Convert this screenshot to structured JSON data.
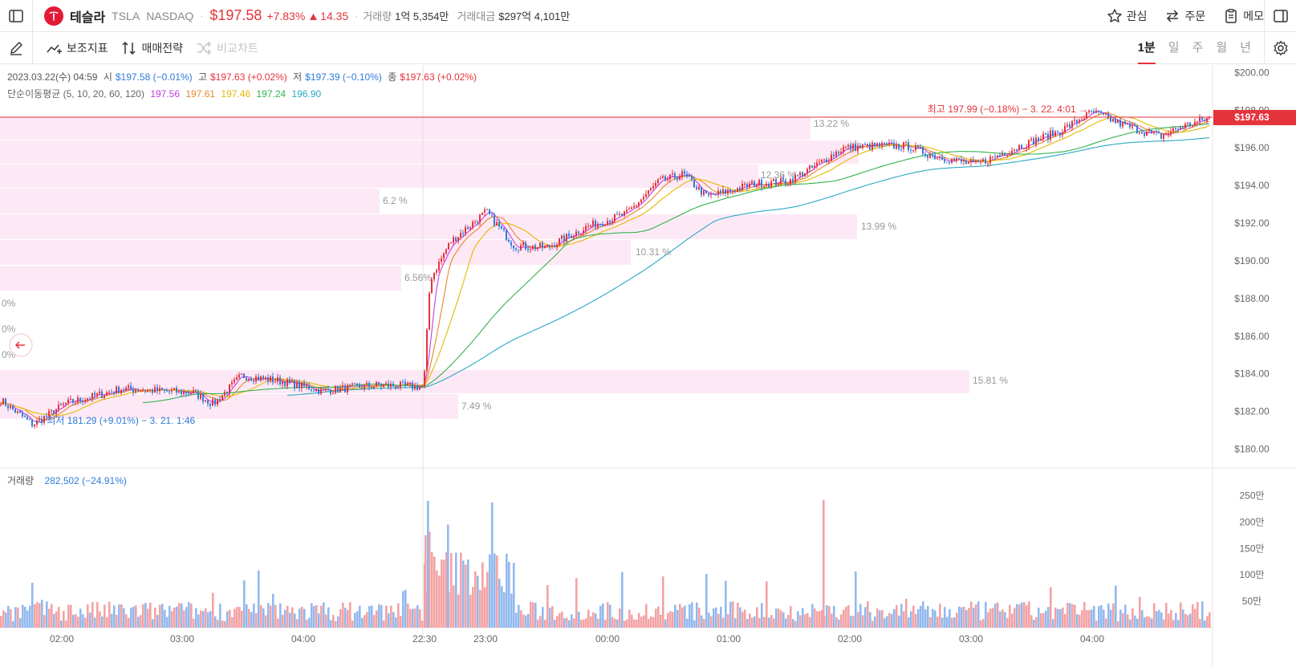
{
  "header": {
    "name": "테슬라",
    "ticker": "TSLA",
    "exchange": "NASDAQ",
    "price": "$197.58",
    "change_pct": "+7.83%",
    "change_abs": "14.35",
    "volume_label": "거래량",
    "volume_value": "1억 5,354만",
    "amount_label": "거래대금",
    "amount_value": "$297억 4,101만",
    "actions": {
      "watch": "관심",
      "order": "주문",
      "memo": "메모"
    }
  },
  "toolbar": {
    "indicators": "보조지표",
    "strategy": "매매전략",
    "compare": "비교차트",
    "periods": [
      "1분",
      "일",
      "주",
      "월",
      "년"
    ],
    "active_period": "1분"
  },
  "ohlc": {
    "datetime": "2023.03.22(수) 04:59",
    "open_label": "시",
    "open": "$197.58 (−0.01%)",
    "high_label": "고",
    "high": "$197.63 (+0.02%)",
    "low_label": "저",
    "low": "$197.39 (−0.10%)",
    "close_label": "종",
    "close": "$197.63 (+0.02%)"
  },
  "ma": {
    "label": "단순이동평균 (5, 10, 20, 60, 120)",
    "values": [
      "197.56",
      "197.61",
      "197.46",
      "197.24",
      "196.90"
    ],
    "colors": [
      "#c43de0",
      "#e8862b",
      "#e6b800",
      "#33b34d",
      "#2aa8c4"
    ]
  },
  "annotations": {
    "high": "최고 197.99 (−0.18%) − 3. 22. 4:01",
    "low": "최저 181.29 (+9.01%) − 3. 21. 1:46",
    "current_price": "$197.63"
  },
  "volume_legend": {
    "label": "거래량",
    "value": "282,502 (−24.91%)"
  },
  "colors": {
    "up": "#e5333b",
    "down": "#2f7bd8",
    "profile": "#fde9f6"
  },
  "chart_data": {
    "type": "candlestick",
    "title": "",
    "price_axis": {
      "ticks": [
        "$200.00",
        "$198.00",
        "$196.00",
        "$194.00",
        "$192.00",
        "$190.00",
        "$188.00",
        "$186.00",
        "$184.00",
        "$182.00",
        "$180.00"
      ],
      "range": [
        179.0,
        200.4
      ]
    },
    "volume_axis": {
      "ticks": [
        "250만",
        "200만",
        "150만",
        "100만",
        "50만"
      ],
      "range": [
        0,
        2750000
      ]
    },
    "time_ticks": [
      "02:00",
      "03:00",
      "04:00",
      "22:30",
      "23:00",
      "00:00",
      "01:00",
      "02:00",
      "03:00",
      "04:00"
    ],
    "price_path_keypoints": [
      [
        0,
        182.6
      ],
      [
        40,
        181.3
      ],
      [
        80,
        182.4
      ],
      [
        150,
        183.2
      ],
      [
        240,
        183.0
      ],
      [
        265,
        182.4
      ],
      [
        300,
        183.9
      ],
      [
        350,
        183.6
      ],
      [
        400,
        183.1
      ],
      [
        470,
        183.4
      ],
      [
        527,
        183.3
      ],
      [
        535,
        189.0
      ],
      [
        560,
        191.0
      ],
      [
        605,
        192.6
      ],
      [
        640,
        190.8
      ],
      [
        680,
        190.7
      ],
      [
        730,
        191.8
      ],
      [
        780,
        192.5
      ],
      [
        820,
        194.2
      ],
      [
        850,
        194.6
      ],
      [
        880,
        193.4
      ],
      [
        940,
        194.1
      ],
      [
        980,
        194.2
      ],
      [
        1010,
        194.9
      ],
      [
        1050,
        196.0
      ],
      [
        1090,
        196.1
      ],
      [
        1130,
        196.1
      ],
      [
        1160,
        195.6
      ],
      [
        1215,
        195.1
      ],
      [
        1270,
        196.1
      ],
      [
        1320,
        196.9
      ],
      [
        1360,
        197.9
      ],
      [
        1400,
        197.2
      ],
      [
        1445,
        196.6
      ],
      [
        1470,
        197.1
      ],
      [
        1508,
        197.6
      ]
    ],
    "volume_profile": [
      {
        "label": "6.2 %"
      },
      {
        "label": "6.56%"
      },
      {
        "label": "0%"
      },
      {
        "label": "0%"
      },
      {
        "label": "0%"
      },
      {
        "label": "15.81 %"
      },
      {
        "label": "7.49 %"
      },
      {
        "label": "13.22 %"
      },
      {
        "label": "12.36 %"
      },
      {
        "label": "13.99 %"
      },
      {
        "label": "10.31 %"
      }
    ]
  }
}
